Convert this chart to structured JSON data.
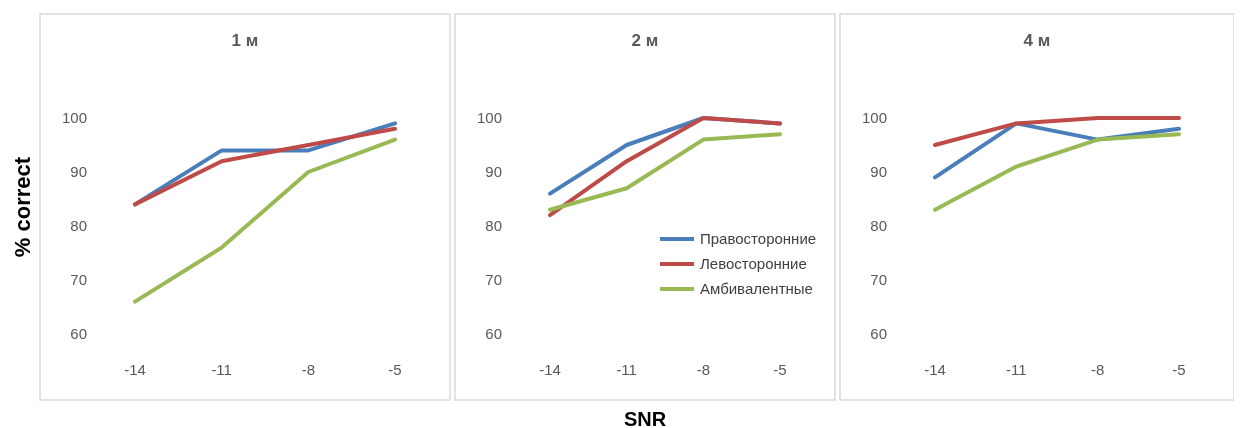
{
  "chart_data": [
    {
      "type": "line",
      "title": "1 м",
      "ylabel": "% correct",
      "categories": [
        "-14",
        "-11",
        "-8",
        "-5"
      ],
      "ylim": [
        60,
        100
      ],
      "yticks": [
        60,
        70,
        80,
        90,
        100
      ],
      "grid": false,
      "legend": false,
      "series": [
        {
          "color": "#4a7ebb",
          "values": [
            84,
            94,
            94,
            99
          ]
        },
        {
          "color": "#be4b48",
          "values": [
            84,
            92,
            95,
            98
          ]
        },
        {
          "color": "#98b954",
          "values": [
            66,
            76,
            90,
            96
          ]
        }
      ]
    },
    {
      "type": "line",
      "title": "2 м",
      "xlabel": "SNR",
      "categories": [
        "-14",
        "-11",
        "-8",
        "-5"
      ],
      "ylim": [
        60,
        100
      ],
      "yticks": [
        60,
        70,
        80,
        90,
        100
      ],
      "grid": false,
      "legend": "bottom right",
      "series": [
        {
          "name": "Правосторонние",
          "color": "#4a7ebb",
          "values": [
            86,
            95,
            100,
            99
          ]
        },
        {
          "name": "Левосторонние",
          "color": "#be4b48",
          "values": [
            82,
            92,
            100,
            99
          ]
        },
        {
          "name": "Амбивалентные",
          "color": "#98b954",
          "values": [
            83,
            87,
            96,
            97
          ]
        }
      ]
    },
    {
      "type": "line",
      "title": "4 м",
      "categories": [
        "-14",
        "-11",
        "-8",
        "-5"
      ],
      "ylim": [
        60,
        100
      ],
      "yticks": [
        60,
        70,
        80,
        90,
        100
      ],
      "grid": false,
      "legend": false,
      "series": [
        {
          "color": "#4a7ebb",
          "values": [
            89,
            99,
            96,
            98
          ]
        },
        {
          "color": "#be4b48",
          "values": [
            95,
            99,
            100,
            100
          ]
        },
        {
          "color": "#98b954",
          "values": [
            83,
            91,
            96,
            97
          ]
        }
      ]
    }
  ]
}
